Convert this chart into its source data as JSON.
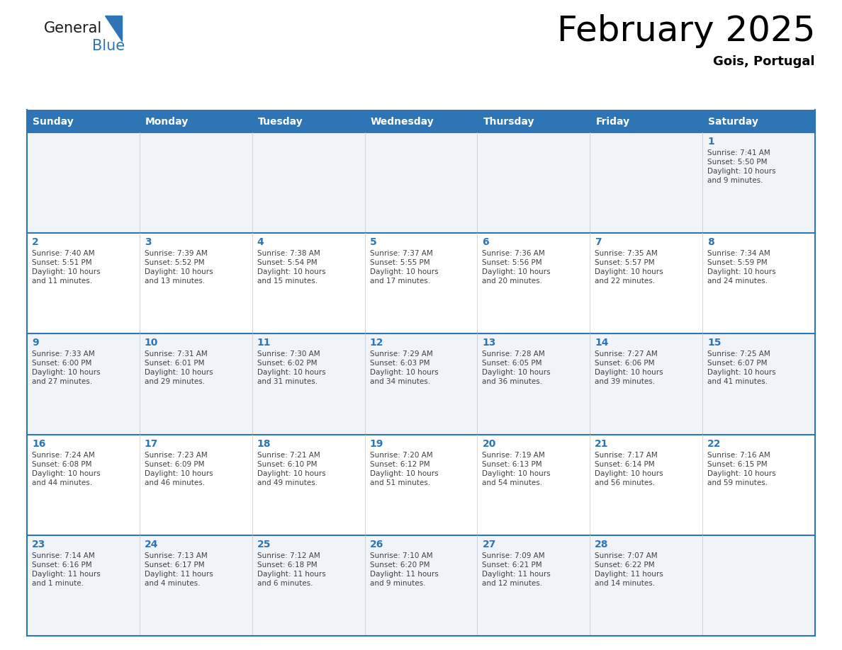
{
  "title": "February 2025",
  "subtitle": "Gois, Portugal",
  "days_of_week": [
    "Sunday",
    "Monday",
    "Tuesday",
    "Wednesday",
    "Thursday",
    "Friday",
    "Saturday"
  ],
  "header_bg": "#2E75B6",
  "header_text_color": "#FFFFFF",
  "cell_bg_odd": "#FFFFFF",
  "cell_bg_even": "#F0F4F8",
  "day_number_color": "#2E75B6",
  "info_text_color": "#404040",
  "border_color": "#2E75B6",
  "cell_border_color": "#AAAAAA",
  "calendar": [
    [
      null,
      null,
      null,
      null,
      null,
      null,
      1
    ],
    [
      2,
      3,
      4,
      5,
      6,
      7,
      8
    ],
    [
      9,
      10,
      11,
      12,
      13,
      14,
      15
    ],
    [
      16,
      17,
      18,
      19,
      20,
      21,
      22
    ],
    [
      23,
      24,
      25,
      26,
      27,
      28,
      null
    ]
  ],
  "day_data": {
    "1": {
      "sunrise": "7:41 AM",
      "sunset": "5:50 PM",
      "daylight_hours": 10,
      "daylight_minutes": 9
    },
    "2": {
      "sunrise": "7:40 AM",
      "sunset": "5:51 PM",
      "daylight_hours": 10,
      "daylight_minutes": 11
    },
    "3": {
      "sunrise": "7:39 AM",
      "sunset": "5:52 PM",
      "daylight_hours": 10,
      "daylight_minutes": 13
    },
    "4": {
      "sunrise": "7:38 AM",
      "sunset": "5:54 PM",
      "daylight_hours": 10,
      "daylight_minutes": 15
    },
    "5": {
      "sunrise": "7:37 AM",
      "sunset": "5:55 PM",
      "daylight_hours": 10,
      "daylight_minutes": 17
    },
    "6": {
      "sunrise": "7:36 AM",
      "sunset": "5:56 PM",
      "daylight_hours": 10,
      "daylight_minutes": 20
    },
    "7": {
      "sunrise": "7:35 AM",
      "sunset": "5:57 PM",
      "daylight_hours": 10,
      "daylight_minutes": 22
    },
    "8": {
      "sunrise": "7:34 AM",
      "sunset": "5:59 PM",
      "daylight_hours": 10,
      "daylight_minutes": 24
    },
    "9": {
      "sunrise": "7:33 AM",
      "sunset": "6:00 PM",
      "daylight_hours": 10,
      "daylight_minutes": 27
    },
    "10": {
      "sunrise": "7:31 AM",
      "sunset": "6:01 PM",
      "daylight_hours": 10,
      "daylight_minutes": 29
    },
    "11": {
      "sunrise": "7:30 AM",
      "sunset": "6:02 PM",
      "daylight_hours": 10,
      "daylight_minutes": 31
    },
    "12": {
      "sunrise": "7:29 AM",
      "sunset": "6:03 PM",
      "daylight_hours": 10,
      "daylight_minutes": 34
    },
    "13": {
      "sunrise": "7:28 AM",
      "sunset": "6:05 PM",
      "daylight_hours": 10,
      "daylight_minutes": 36
    },
    "14": {
      "sunrise": "7:27 AM",
      "sunset": "6:06 PM",
      "daylight_hours": 10,
      "daylight_minutes": 39
    },
    "15": {
      "sunrise": "7:25 AM",
      "sunset": "6:07 PM",
      "daylight_hours": 10,
      "daylight_minutes": 41
    },
    "16": {
      "sunrise": "7:24 AM",
      "sunset": "6:08 PM",
      "daylight_hours": 10,
      "daylight_minutes": 44
    },
    "17": {
      "sunrise": "7:23 AM",
      "sunset": "6:09 PM",
      "daylight_hours": 10,
      "daylight_minutes": 46
    },
    "18": {
      "sunrise": "7:21 AM",
      "sunset": "6:10 PM",
      "daylight_hours": 10,
      "daylight_minutes": 49
    },
    "19": {
      "sunrise": "7:20 AM",
      "sunset": "6:12 PM",
      "daylight_hours": 10,
      "daylight_minutes": 51
    },
    "20": {
      "sunrise": "7:19 AM",
      "sunset": "6:13 PM",
      "daylight_hours": 10,
      "daylight_minutes": 54
    },
    "21": {
      "sunrise": "7:17 AM",
      "sunset": "6:14 PM",
      "daylight_hours": 10,
      "daylight_minutes": 56
    },
    "22": {
      "sunrise": "7:16 AM",
      "sunset": "6:15 PM",
      "daylight_hours": 10,
      "daylight_minutes": 59
    },
    "23": {
      "sunrise": "7:14 AM",
      "sunset": "6:16 PM",
      "daylight_hours": 11,
      "daylight_minutes": 1
    },
    "24": {
      "sunrise": "7:13 AM",
      "sunset": "6:17 PM",
      "daylight_hours": 11,
      "daylight_minutes": 4
    },
    "25": {
      "sunrise": "7:12 AM",
      "sunset": "6:18 PM",
      "daylight_hours": 11,
      "daylight_minutes": 6
    },
    "26": {
      "sunrise": "7:10 AM",
      "sunset": "6:20 PM",
      "daylight_hours": 11,
      "daylight_minutes": 9
    },
    "27": {
      "sunrise": "7:09 AM",
      "sunset": "6:21 PM",
      "daylight_hours": 11,
      "daylight_minutes": 12
    },
    "28": {
      "sunrise": "7:07 AM",
      "sunset": "6:22 PM",
      "daylight_hours": 11,
      "daylight_minutes": 14
    }
  }
}
